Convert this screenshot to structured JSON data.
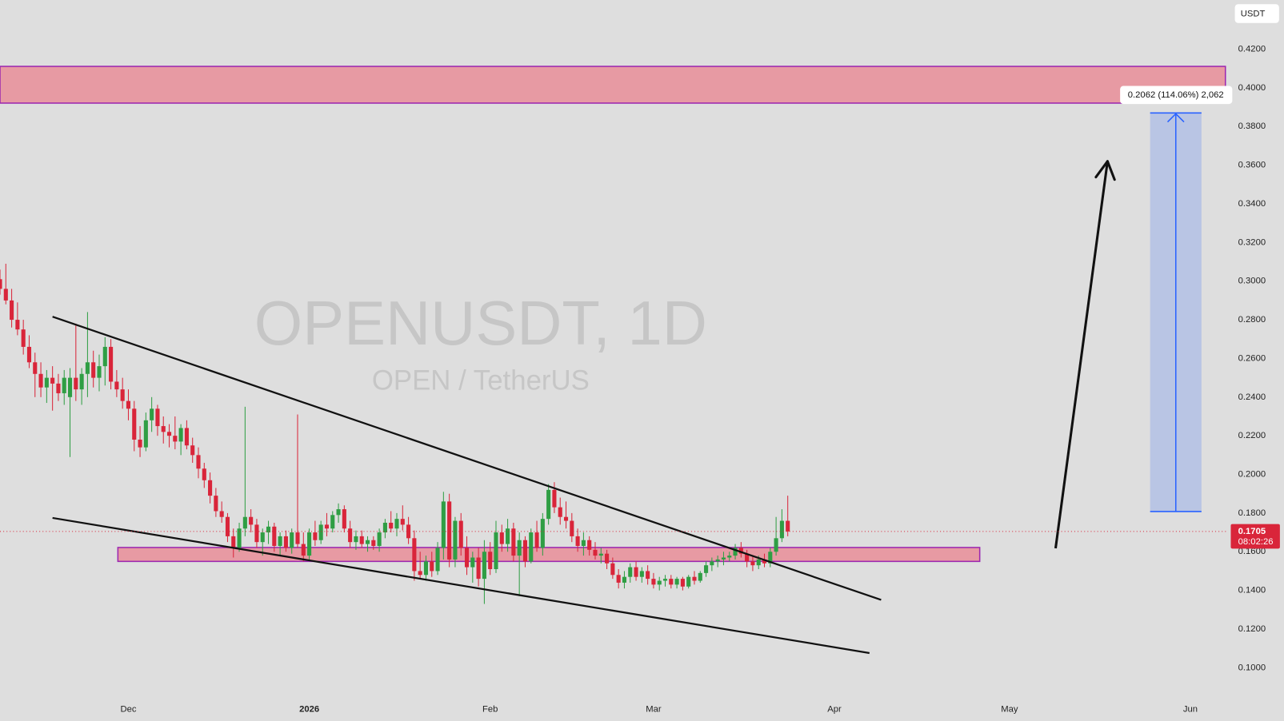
{
  "chart_data": {
    "type": "candlestick",
    "title": "OPENUSDT, 1D",
    "subtitle": "OPEN / TetherUS",
    "currency": "USDT",
    "countdown": "08:02:26",
    "up_color": "#2f9e44",
    "down_color": "#d9253a",
    "xlim": [
      -22,
      188.5
    ],
    "ylim": [
      0.0856,
      0.4454
    ],
    "xticks": [
      {
        "value": 0,
        "label": "Dec"
      },
      {
        "value": 31,
        "label": "2026"
      },
      {
        "value": 62,
        "label": "Feb"
      },
      {
        "value": 90,
        "label": "Mar"
      },
      {
        "value": 121,
        "label": "Apr"
      },
      {
        "value": 151,
        "label": "May"
      },
      {
        "value": 182,
        "label": "Jun"
      }
    ],
    "yticks": [
      {
        "value": 0.1,
        "label": "0.1000"
      },
      {
        "value": 0.12,
        "label": "0.1200"
      },
      {
        "value": 0.14,
        "label": "0.1400"
      },
      {
        "value": 0.16,
        "label": "0.1600"
      },
      {
        "value": 0.18,
        "label": "0.1800"
      },
      {
        "value": 0.2,
        "label": "0.2000"
      },
      {
        "value": 0.22,
        "label": "0.2200"
      },
      {
        "value": 0.24,
        "label": "0.2400"
      },
      {
        "value": 0.26,
        "label": "0.2600"
      },
      {
        "value": 0.28,
        "label": "0.2800"
      },
      {
        "value": 0.3,
        "label": "0.3000"
      },
      {
        "value": 0.32,
        "label": "0.3200"
      },
      {
        "value": 0.34,
        "label": "0.3400"
      },
      {
        "value": 0.36,
        "label": "0.3600"
      },
      {
        "value": 0.38,
        "label": "0.3800"
      },
      {
        "value": 0.4,
        "label": "0.4000"
      },
      {
        "value": 0.42,
        "label": "0.4200"
      }
    ],
    "grid": false,
    "x": [
      -22,
      -21,
      -20,
      -19,
      -18,
      -17,
      -16,
      -15,
      -14,
      -13,
      -12,
      -11,
      -10,
      -9,
      -8,
      -7,
      -6,
      -5,
      -4,
      -3,
      -2,
      -1,
      0,
      1,
      2,
      3,
      4,
      5,
      6,
      7,
      8,
      9,
      10,
      11,
      12,
      13,
      14,
      15,
      16,
      17,
      18,
      19,
      20,
      21,
      22,
      23,
      24,
      25,
      26,
      27,
      28,
      29,
      30,
      31,
      32,
      33,
      34,
      35,
      36,
      37,
      38,
      39,
      40,
      41,
      42,
      43,
      44,
      45,
      46,
      47,
      48,
      49,
      50,
      51,
      52,
      53,
      54,
      55,
      56,
      57,
      58,
      59,
      60,
      61,
      62,
      63,
      64,
      65,
      66,
      67,
      68,
      69,
      70,
      71,
      72,
      73,
      74,
      75,
      76,
      77,
      78,
      79,
      80,
      81,
      82,
      83,
      84,
      85,
      86,
      87,
      88,
      89,
      90,
      91,
      92,
      93,
      94,
      95,
      96,
      97,
      98,
      99,
      100,
      101,
      102,
      103,
      104,
      105,
      106,
      107,
      108,
      109,
      110,
      111,
      112,
      113
    ],
    "candles": [
      [
        0.301,
        0.306,
        0.293,
        0.296
      ],
      [
        0.296,
        0.309,
        0.288,
        0.29
      ],
      [
        0.29,
        0.296,
        0.276,
        0.28
      ],
      [
        0.28,
        0.289,
        0.272,
        0.275
      ],
      [
        0.275,
        0.28,
        0.262,
        0.266
      ],
      [
        0.266,
        0.272,
        0.255,
        0.258
      ],
      [
        0.258,
        0.263,
        0.24,
        0.252
      ],
      [
        0.252,
        0.258,
        0.24,
        0.245
      ],
      [
        0.245,
        0.254,
        0.237,
        0.25
      ],
      [
        0.25,
        0.256,
        0.233,
        0.247
      ],
      [
        0.247,
        0.252,
        0.238,
        0.242
      ],
      [
        0.242,
        0.254,
        0.236,
        0.25
      ],
      [
        0.24,
        0.255,
        0.209,
        0.25
      ],
      [
        0.25,
        0.278,
        0.238,
        0.244
      ],
      [
        0.244,
        0.255,
        0.236,
        0.252
      ],
      [
        0.252,
        0.284,
        0.24,
        0.258
      ],
      [
        0.258,
        0.264,
        0.245,
        0.25
      ],
      [
        0.25,
        0.262,
        0.243,
        0.256
      ],
      [
        0.256,
        0.271,
        0.246,
        0.266
      ],
      [
        0.266,
        0.27,
        0.244,
        0.248
      ],
      [
        0.248,
        0.254,
        0.24,
        0.244
      ],
      [
        0.244,
        0.25,
        0.234,
        0.238
      ],
      [
        0.238,
        0.244,
        0.228,
        0.234
      ],
      [
        0.234,
        0.238,
        0.212,
        0.218
      ],
      [
        0.218,
        0.225,
        0.209,
        0.214
      ],
      [
        0.214,
        0.232,
        0.212,
        0.228
      ],
      [
        0.228,
        0.24,
        0.222,
        0.234
      ],
      [
        0.234,
        0.236,
        0.22,
        0.225
      ],
      [
        0.225,
        0.23,
        0.216,
        0.222
      ],
      [
        0.222,
        0.226,
        0.214,
        0.22
      ],
      [
        0.22,
        0.23,
        0.213,
        0.217
      ],
      [
        0.217,
        0.226,
        0.21,
        0.224
      ],
      [
        0.224,
        0.228,
        0.213,
        0.215
      ],
      [
        0.215,
        0.219,
        0.206,
        0.21
      ],
      [
        0.21,
        0.214,
        0.198,
        0.203
      ],
      [
        0.203,
        0.206,
        0.193,
        0.197
      ],
      [
        0.197,
        0.201,
        0.185,
        0.189
      ],
      [
        0.189,
        0.193,
        0.178,
        0.181
      ],
      [
        0.181,
        0.186,
        0.175,
        0.178
      ],
      [
        0.178,
        0.18,
        0.165,
        0.168
      ],
      [
        0.168,
        0.172,
        0.157,
        0.162
      ],
      [
        0.162,
        0.175,
        0.16,
        0.172
      ],
      [
        0.172,
        0.235,
        0.168,
        0.178
      ],
      [
        0.178,
        0.182,
        0.17,
        0.174
      ],
      [
        0.174,
        0.177,
        0.162,
        0.165
      ],
      [
        0.165,
        0.172,
        0.158,
        0.17
      ],
      [
        0.17,
        0.176,
        0.164,
        0.173
      ],
      [
        0.173,
        0.175,
        0.16,
        0.163
      ],
      [
        0.163,
        0.17,
        0.158,
        0.168
      ],
      [
        0.168,
        0.171,
        0.16,
        0.162
      ],
      [
        0.162,
        0.172,
        0.159,
        0.17
      ],
      [
        0.17,
        0.231,
        0.162,
        0.164
      ],
      [
        0.164,
        0.17,
        0.155,
        0.158
      ],
      [
        0.158,
        0.172,
        0.156,
        0.17
      ],
      [
        0.17,
        0.176,
        0.163,
        0.166
      ],
      [
        0.166,
        0.176,
        0.164,
        0.174
      ],
      [
        0.174,
        0.18,
        0.168,
        0.172
      ],
      [
        0.172,
        0.181,
        0.17,
        0.179
      ],
      [
        0.179,
        0.185,
        0.175,
        0.182
      ],
      [
        0.182,
        0.184,
        0.17,
        0.172
      ],
      [
        0.172,
        0.176,
        0.162,
        0.165
      ],
      [
        0.165,
        0.171,
        0.161,
        0.168
      ],
      [
        0.168,
        0.171,
        0.162,
        0.164
      ],
      [
        0.164,
        0.168,
        0.16,
        0.166
      ],
      [
        0.166,
        0.168,
        0.161,
        0.163
      ],
      [
        0.163,
        0.172,
        0.16,
        0.17
      ],
      [
        0.17,
        0.177,
        0.167,
        0.175
      ],
      [
        0.175,
        0.181,
        0.17,
        0.172
      ],
      [
        0.172,
        0.18,
        0.168,
        0.177
      ],
      [
        0.177,
        0.184,
        0.171,
        0.174
      ],
      [
        0.174,
        0.178,
        0.164,
        0.167
      ],
      [
        0.167,
        0.171,
        0.145,
        0.15
      ],
      [
        0.15,
        0.16,
        0.146,
        0.148
      ],
      [
        0.148,
        0.158,
        0.145,
        0.155
      ],
      [
        0.155,
        0.16,
        0.147,
        0.15
      ],
      [
        0.15,
        0.165,
        0.148,
        0.162
      ],
      [
        0.162,
        0.191,
        0.156,
        0.186
      ],
      [
        0.186,
        0.19,
        0.152,
        0.156
      ],
      [
        0.156,
        0.178,
        0.152,
        0.176
      ],
      [
        0.176,
        0.18,
        0.158,
        0.162
      ],
      [
        0.162,
        0.168,
        0.148,
        0.152
      ],
      [
        0.152,
        0.16,
        0.144,
        0.157
      ],
      [
        0.157,
        0.162,
        0.142,
        0.146
      ],
      [
        0.146,
        0.166,
        0.133,
        0.16
      ],
      [
        0.16,
        0.165,
        0.148,
        0.151
      ],
      [
        0.151,
        0.176,
        0.149,
        0.17
      ],
      [
        0.17,
        0.174,
        0.16,
        0.164
      ],
      [
        0.164,
        0.177,
        0.16,
        0.172
      ],
      [
        0.172,
        0.175,
        0.155,
        0.158
      ],
      [
        0.158,
        0.17,
        0.137,
        0.166
      ],
      [
        0.166,
        0.168,
        0.152,
        0.155
      ],
      [
        0.155,
        0.172,
        0.154,
        0.17
      ],
      [
        0.17,
        0.176,
        0.16,
        0.162
      ],
      [
        0.162,
        0.18,
        0.158,
        0.177
      ],
      [
        0.177,
        0.195,
        0.174,
        0.192
      ],
      [
        0.192,
        0.196,
        0.18,
        0.183
      ],
      [
        0.183,
        0.188,
        0.174,
        0.178
      ],
      [
        0.178,
        0.186,
        0.172,
        0.176
      ],
      [
        0.176,
        0.18,
        0.165,
        0.168
      ],
      [
        0.168,
        0.172,
        0.16,
        0.163
      ],
      [
        0.163,
        0.17,
        0.158,
        0.166
      ],
      [
        0.166,
        0.168,
        0.158,
        0.161
      ],
      [
        0.161,
        0.165,
        0.156,
        0.158
      ],
      [
        0.158,
        0.162,
        0.154,
        0.159
      ],
      [
        0.159,
        0.161,
        0.151,
        0.154
      ],
      [
        0.154,
        0.157,
        0.146,
        0.148
      ],
      [
        0.148,
        0.151,
        0.141,
        0.144
      ],
      [
        0.144,
        0.15,
        0.141,
        0.147
      ],
      [
        0.147,
        0.154,
        0.144,
        0.152
      ],
      [
        0.152,
        0.155,
        0.145,
        0.147
      ],
      [
        0.147,
        0.152,
        0.144,
        0.15
      ],
      [
        0.15,
        0.153,
        0.143,
        0.146
      ],
      [
        0.146,
        0.149,
        0.141,
        0.143
      ],
      [
        0.143,
        0.147,
        0.14,
        0.145
      ],
      [
        0.145,
        0.148,
        0.142,
        0.146
      ],
      [
        0.146,
        0.148,
        0.141,
        0.143
      ],
      [
        0.143,
        0.147,
        0.141,
        0.146
      ],
      [
        0.146,
        0.147,
        0.14,
        0.142
      ],
      [
        0.142,
        0.148,
        0.141,
        0.147
      ],
      [
        0.147,
        0.15,
        0.143,
        0.145
      ],
      [
        0.145,
        0.15,
        0.144,
        0.149
      ],
      [
        0.149,
        0.155,
        0.147,
        0.153
      ],
      [
        0.153,
        0.157,
        0.15,
        0.155
      ],
      [
        0.155,
        0.158,
        0.152,
        0.156
      ],
      [
        0.156,
        0.16,
        0.153,
        0.157
      ],
      [
        0.157,
        0.16,
        0.155,
        0.158
      ],
      [
        0.158,
        0.164,
        0.156,
        0.162
      ],
      [
        0.162,
        0.165,
        0.157,
        0.159
      ],
      [
        0.159,
        0.161,
        0.152,
        0.155
      ],
      [
        0.155,
        0.158,
        0.15,
        0.153
      ],
      [
        0.153,
        0.158,
        0.151,
        0.156
      ],
      [
        0.156,
        0.159,
        0.152,
        0.154
      ],
      [
        0.154,
        0.162,
        0.152,
        0.16
      ],
      [
        0.16,
        0.178,
        0.158,
        0.167
      ],
      [
        0.167,
        0.182,
        0.165,
        0.176
      ],
      [
        0.176,
        0.189,
        0.168,
        0.1705
      ]
    ],
    "zones": [
      {
        "x": [
          -22,
          188
        ],
        "y": [
          0.3921,
          0.4111
        ]
      },
      {
        "x": [
          -1.8,
          145.9
        ],
        "y": [
          0.155,
          0.1622
        ]
      }
    ],
    "trendlines": [
      {
        "x": [
          -13,
          129
        ],
        "y": [
          0.2816,
          0.1351
        ]
      },
      {
        "x": [
          -13,
          127
        ],
        "y": [
          0.1775,
          0.1076
        ]
      }
    ],
    "arrow": {
      "x": [
        158.9,
        167.8
      ],
      "y": [
        0.1618,
        0.362
      ]
    },
    "measure": {
      "x": [
        175.1,
        183.9
      ],
      "y": [
        0.1808,
        0.387
      ],
      "label": "0.2062 (114.06%) 2,062"
    }
  }
}
